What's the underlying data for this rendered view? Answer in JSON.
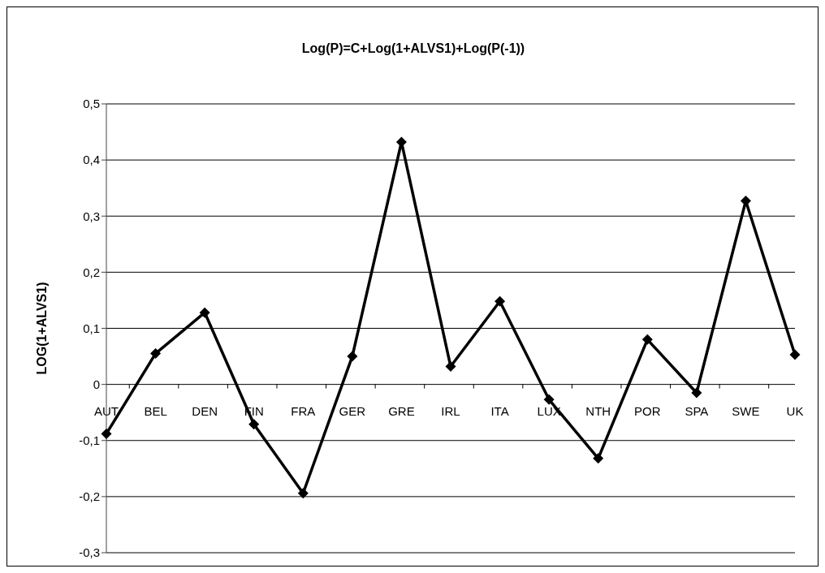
{
  "chart_data": {
    "type": "line",
    "title": "Log(P)=C+Log(1+ALVS1)+Log(P(-1))",
    "ylabel": "LOG(1+ALVS1)",
    "categories": [
      "AUT",
      "BEL",
      "DEN",
      "FIN",
      "FRA",
      "GER",
      "GRE",
      "IRL",
      "ITA",
      "LUX",
      "NTH",
      "POR",
      "SPA",
      "SWE",
      "UK"
    ],
    "series": [
      {
        "color": "#000000",
        "values": [
          -0.088,
          0.055,
          0.128,
          -0.071,
          -0.194,
          0.05,
          0.432,
          0.032,
          0.148,
          -0.027,
          -0.132,
          0.08,
          -0.015,
          0.327,
          0.053
        ]
      }
    ],
    "ylim": [
      -0.3,
      0.5
    ],
    "yticks": [
      {
        "value": -0.3,
        "label": "-0,3"
      },
      {
        "value": -0.2,
        "label": "-0,2"
      },
      {
        "value": -0.1,
        "label": "-0,1"
      },
      {
        "value": 0,
        "label": "0"
      },
      {
        "value": 0.1,
        "label": "0,1"
      },
      {
        "value": 0.2,
        "label": "0,2"
      },
      {
        "value": 0.3,
        "label": "0,3"
      },
      {
        "value": 0.4,
        "label": "0,4"
      },
      {
        "value": 0.5,
        "label": "0,5"
      }
    ],
    "grid": "y",
    "marker": "diamond",
    "line_style": "solid",
    "legend": false
  }
}
